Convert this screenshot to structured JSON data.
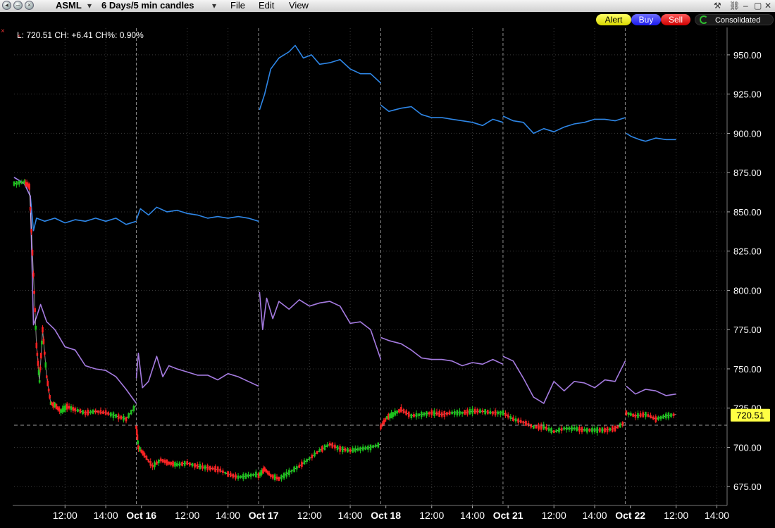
{
  "toolbar": {
    "symbol": "ASML",
    "period": "6 Days/5 min candles",
    "menu_file": "File",
    "menu_edit": "Edit",
    "menu_view": "View",
    "alert_label": "Alert",
    "buy_label": "Buy",
    "sell_label": "Sell",
    "consolidated_label": "Consolidated"
  },
  "info_label": "L: 720.51 CH: +6.41 CH%: 0.90%",
  "last_price_tag": "720.51",
  "colors": {
    "upper_band": "#2e86e6",
    "middle_band": "#a57be0",
    "candle_up": "#1cc21c",
    "candle_down": "#ff2222",
    "grid": "#3a3a3a",
    "price_tag": "#ffff44"
  },
  "chart_data": {
    "type": "line",
    "ylim": [
      663,
      967
    ],
    "x_range": [
      0,
      35
    ],
    "y_ticks": [
      "950.00",
      "925.00",
      "900.00",
      "875.00",
      "850.00",
      "825.00",
      "800.00",
      "775.00",
      "750.00",
      "725.00",
      "700.00",
      "675.00"
    ],
    "y_tick_values": [
      950,
      925,
      900,
      875,
      850,
      825,
      800,
      775,
      750,
      725,
      700,
      675
    ],
    "x_ticks": [
      {
        "x": 2.5,
        "label": "12:00",
        "bold": false
      },
      {
        "x": 4.5,
        "label": "14:00",
        "bold": false
      },
      {
        "x": 6.25,
        "label": "Oct 16",
        "bold": true
      },
      {
        "x": 8.5,
        "label": "12:00",
        "bold": false
      },
      {
        "x": 10.5,
        "label": "14:00",
        "bold": false
      },
      {
        "x": 12.25,
        "label": "Oct 17",
        "bold": true
      },
      {
        "x": 14.5,
        "label": "12:00",
        "bold": false
      },
      {
        "x": 16.5,
        "label": "14:00",
        "bold": false
      },
      {
        "x": 18.25,
        "label": "Oct 18",
        "bold": true
      },
      {
        "x": 20.5,
        "label": "12:00",
        "bold": false
      },
      {
        "x": 22.5,
        "label": "14:00",
        "bold": false
      },
      {
        "x": 24.25,
        "label": "Oct 21",
        "bold": true
      },
      {
        "x": 26.5,
        "label": "12:00",
        "bold": false
      },
      {
        "x": 28.5,
        "label": "14:00",
        "bold": false
      },
      {
        "x": 30.25,
        "label": "Oct 22",
        "bold": true
      },
      {
        "x": 32.5,
        "label": "12:00",
        "bold": false
      },
      {
        "x": 34.5,
        "label": "14:00",
        "bold": false
      }
    ],
    "day_separators": [
      6,
      12,
      18,
      24,
      30
    ],
    "last_price": 720.51,
    "series": [
      {
        "segments": [
          [
            [
              0,
              872
            ],
            [
              0.5,
              868
            ],
            [
              0.8,
              860
            ],
            [
              0.95,
              838
            ],
            [
              1.1,
              846
            ],
            [
              1.5,
              844
            ],
            [
              2,
              846
            ],
            [
              2.5,
              843
            ],
            [
              3,
              845
            ],
            [
              3.5,
              844
            ],
            [
              4,
              846
            ],
            [
              4.5,
              844
            ],
            [
              5,
              846
            ],
            [
              5.5,
              842
            ],
            [
              6,
              844
            ]
          ],
          [
            [
              6,
              845
            ],
            [
              6.2,
              852
            ],
            [
              6.6,
              848
            ],
            [
              7,
              853
            ],
            [
              7.5,
              850
            ],
            [
              8,
              851
            ],
            [
              8.5,
              849
            ],
            [
              9,
              848
            ],
            [
              9.5,
              846
            ],
            [
              10,
              847
            ],
            [
              10.5,
              846
            ],
            [
              11,
              847
            ],
            [
              11.5,
              846
            ],
            [
              12,
              844
            ]
          ],
          [
            [
              12.05,
              915
            ],
            [
              12.3,
              925
            ],
            [
              12.6,
              941
            ],
            [
              13,
              948
            ],
            [
              13.5,
              952
            ],
            [
              13.8,
              956
            ],
            [
              14.2,
              948
            ],
            [
              14.6,
              950
            ],
            [
              15,
              944
            ],
            [
              15.5,
              945
            ],
            [
              16,
              947
            ],
            [
              16.5,
              941
            ],
            [
              17,
              938
            ],
            [
              17.5,
              938
            ],
            [
              18,
              932
            ]
          ],
          [
            [
              18,
              918
            ],
            [
              18.4,
              914
            ],
            [
              19,
              916
            ],
            [
              19.5,
              917
            ],
            [
              20,
              912
            ],
            [
              20.5,
              910
            ],
            [
              21,
              910
            ],
            [
              21.5,
              909
            ],
            [
              22,
              908
            ],
            [
              22.5,
              907
            ],
            [
              23,
              905
            ],
            [
              23.5,
              909
            ],
            [
              24,
              907
            ]
          ],
          [
            [
              24,
              911
            ],
            [
              24.5,
              908
            ],
            [
              25,
              907
            ],
            [
              25.5,
              900
            ],
            [
              26,
              903
            ],
            [
              26.5,
              901
            ],
            [
              27,
              904
            ],
            [
              27.5,
              906
            ],
            [
              28,
              907
            ],
            [
              28.5,
              909
            ],
            [
              29,
              909
            ],
            [
              29.5,
              908
            ],
            [
              30,
              910
            ]
          ],
          [
            [
              30.05,
              900
            ],
            [
              30.3,
              898
            ],
            [
              30.7,
              896
            ],
            [
              31,
              895
            ],
            [
              31.5,
              897
            ],
            [
              32,
              896
            ],
            [
              32.5,
              896
            ]
          ]
        ]
      },
      {
        "segments": [
          [
            [
              0,
              872
            ],
            [
              0.5,
              868
            ],
            [
              0.8,
              860
            ],
            [
              0.95,
              778
            ],
            [
              1.1,
              783
            ],
            [
              1.3,
              791
            ],
            [
              1.6,
              780
            ],
            [
              2,
              775
            ],
            [
              2.5,
              764
            ],
            [
              3,
              762
            ],
            [
              3.5,
              752
            ],
            [
              4,
              750
            ],
            [
              4.5,
              749
            ],
            [
              5,
              745
            ],
            [
              5.5,
              737
            ],
            [
              6,
              728
            ]
          ],
          [
            [
              6,
              744
            ],
            [
              6.1,
              760
            ],
            [
              6.3,
              738
            ],
            [
              6.6,
              742
            ],
            [
              7,
              758
            ],
            [
              7.3,
              745
            ],
            [
              7.6,
              752
            ],
            [
              8,
              750
            ],
            [
              8.5,
              748
            ],
            [
              9,
              746
            ],
            [
              9.5,
              746
            ],
            [
              10,
              743
            ],
            [
              10.5,
              747
            ],
            [
              11,
              745
            ],
            [
              11.5,
              742
            ],
            [
              12,
              739
            ]
          ],
          [
            [
              12.05,
              799
            ],
            [
              12.2,
              775
            ],
            [
              12.4,
              795
            ],
            [
              12.7,
              782
            ],
            [
              13,
              793
            ],
            [
              13.5,
              788
            ],
            [
              14,
              794
            ],
            [
              14.5,
              790
            ],
            [
              15,
              792
            ],
            [
              15.5,
              793
            ],
            [
              16,
              790
            ],
            [
              16.5,
              779
            ],
            [
              17,
              780
            ],
            [
              17.5,
              775
            ],
            [
              18,
              756
            ]
          ],
          [
            [
              18,
              770
            ],
            [
              18.4,
              768
            ],
            [
              19,
              766
            ],
            [
              19.5,
              762
            ],
            [
              20,
              757
            ],
            [
              20.5,
              756
            ],
            [
              21,
              756
            ],
            [
              21.5,
              755
            ],
            [
              22,
              752
            ],
            [
              22.5,
              754
            ],
            [
              23,
              753
            ],
            [
              23.5,
              756
            ],
            [
              24,
              753
            ]
          ],
          [
            [
              24,
              758
            ],
            [
              24.5,
              755
            ],
            [
              25,
              744
            ],
            [
              25.5,
              732
            ],
            [
              26,
              728
            ],
            [
              26.5,
              742
            ],
            [
              27,
              736
            ],
            [
              27.5,
              742
            ],
            [
              28,
              741
            ],
            [
              28.5,
              738
            ],
            [
              29,
              743
            ],
            [
              29.5,
              742
            ],
            [
              30,
              755
            ]
          ],
          [
            [
              30.05,
              739
            ],
            [
              30.5,
              734
            ],
            [
              31,
              737
            ],
            [
              31.5,
              736
            ],
            [
              32,
              733
            ],
            [
              32.5,
              734
            ]
          ]
        ]
      },
      {
        "segments": [
          [
            [
              0,
              868
            ],
            [
              0.5,
              869
            ],
            [
              0.75,
              866
            ],
            [
              0.95,
              810
            ],
            [
              1.1,
              765
            ],
            [
              1.25,
              742
            ],
            [
              1.4,
              775
            ],
            [
              1.6,
              745
            ],
            [
              1.8,
              728
            ],
            [
              2,
              727
            ],
            [
              2.3,
              723
            ],
            [
              2.6,
              726
            ],
            [
              3,
              724
            ],
            [
              3.5,
              722
            ],
            [
              4,
              723
            ],
            [
              4.5,
              722
            ],
            [
              5,
              720
            ],
            [
              5.5,
              718
            ],
            [
              6,
              727
            ]
          ],
          [
            [
              6,
              713
            ],
            [
              6.1,
              700
            ],
            [
              6.4,
              695
            ],
            [
              6.8,
              688
            ],
            [
              7.2,
              692
            ],
            [
              7.6,
              690
            ],
            [
              8,
              689
            ],
            [
              8.5,
              690
            ],
            [
              9,
              688
            ],
            [
              9.5,
              687
            ],
            [
              10,
              686
            ],
            [
              10.5,
              683
            ],
            [
              11,
              681
            ],
            [
              11.5,
              682
            ],
            [
              12,
              683
            ]
          ],
          [
            [
              12,
              682
            ],
            [
              12.3,
              686
            ],
            [
              12.6,
              682
            ],
            [
              13,
              680
            ],
            [
              13.5,
              684
            ],
            [
              14,
              688
            ],
            [
              14.5,
              693
            ],
            [
              15,
              698
            ],
            [
              15.5,
              702
            ],
            [
              16,
              699
            ],
            [
              16.5,
              698
            ],
            [
              17,
              699
            ],
            [
              17.5,
              700
            ],
            [
              18,
              702
            ]
          ],
          [
            [
              18,
              713
            ],
            [
              18.3,
              719
            ],
            [
              18.6,
              721
            ],
            [
              19,
              724
            ],
            [
              19.5,
              720
            ],
            [
              20,
              721
            ],
            [
              20.5,
              722
            ],
            [
              21,
              721
            ],
            [
              21.5,
              722
            ],
            [
              22,
              722
            ],
            [
              22.5,
              723
            ],
            [
              23,
              723
            ],
            [
              23.5,
              722
            ],
            [
              24,
              722
            ]
          ],
          [
            [
              24,
              722
            ],
            [
              24.5,
              718
            ],
            [
              25,
              716
            ],
            [
              25.5,
              713
            ],
            [
              26,
              713
            ],
            [
              26.5,
              710
            ],
            [
              27,
              712
            ],
            [
              27.5,
              712
            ],
            [
              28,
              711
            ],
            [
              28.5,
              711
            ],
            [
              29,
              711
            ],
            [
              29.5,
              712
            ],
            [
              30,
              716
            ]
          ],
          [
            [
              30.05,
              722
            ],
            [
              30.5,
              720
            ],
            [
              31,
              721
            ],
            [
              31.5,
              718
            ],
            [
              32,
              720
            ],
            [
              32.5,
              721
            ]
          ]
        ]
      }
    ]
  }
}
